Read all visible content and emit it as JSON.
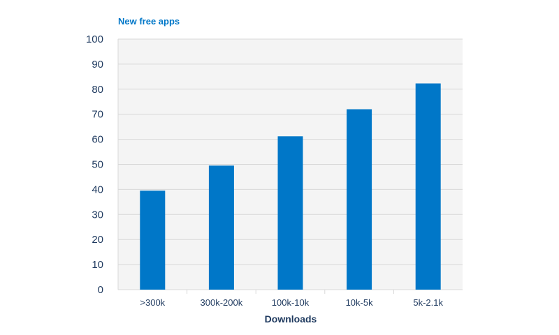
{
  "chart_data": {
    "type": "bar",
    "title": "New free apps",
    "xlabel": "Downloads",
    "ylabel": "",
    "categories": [
      ">300k",
      "300k-200k",
      "100k-10k",
      "10k-5k",
      "5k-2.1k"
    ],
    "values": [
      39.5,
      49.5,
      61.2,
      72.0,
      82.3
    ],
    "ylim": [
      0,
      100
    ],
    "yticks": [
      "0",
      "10",
      "20",
      "30",
      "40",
      "50",
      "60",
      "70",
      "80",
      "90",
      "100"
    ],
    "grid": true,
    "legend": "none",
    "colors": {
      "bar": "#0077c8",
      "plot_bg": "#f4f4f4",
      "grid": "#d8d8d8",
      "text": "#1f3a5f",
      "title": "#0077c8"
    }
  }
}
